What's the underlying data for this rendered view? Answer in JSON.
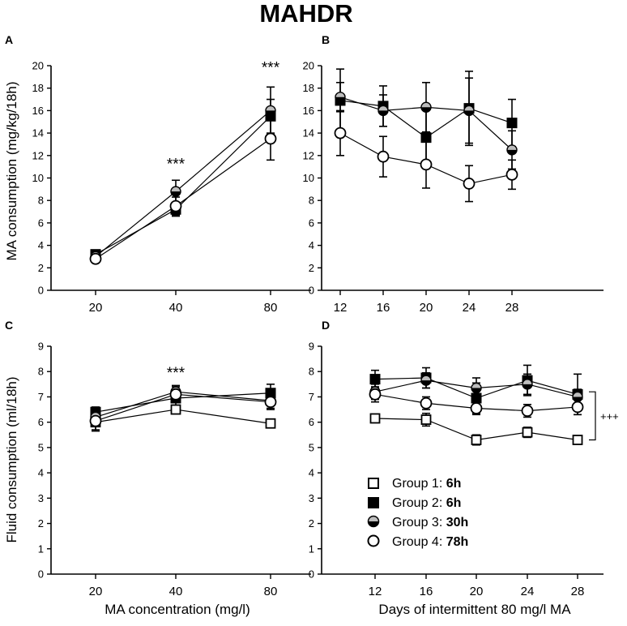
{
  "figure": {
    "title": "MAHDR",
    "xlabel_left": "MA concentration (mg/l)",
    "xlabel_right": "Days of intermittent 80 mg/l MA"
  },
  "legend": [
    {
      "group": "Group 1:",
      "time": "6h",
      "marker": "open-square"
    },
    {
      "group": "Group 2:",
      "time": "6h",
      "marker": "filled-square"
    },
    {
      "group": "Group 3:",
      "time": "30h",
      "marker": "half-filled-circle"
    },
    {
      "group": "Group 4:",
      "time": "78h",
      "marker": "open-circle"
    }
  ],
  "colors": {
    "ink": "#000000",
    "grey_fill": "#bdbdbd",
    "white": "#ffffff"
  },
  "chart_data": [
    {
      "panel": "A",
      "type": "line",
      "ylabel": "MA consumption (mg/kg/18h)",
      "x": [
        20,
        40,
        80
      ],
      "ylim": [
        0,
        20
      ],
      "yticks": [
        0,
        2,
        4,
        6,
        8,
        10,
        12,
        14,
        16,
        18,
        20
      ],
      "series": [
        {
          "name": "Group 2",
          "marker": "filled-square",
          "values": [
            3.2,
            7.2,
            15.5
          ],
          "err": [
            0.2,
            0.6,
            1.5
          ]
        },
        {
          "name": "Group 3",
          "marker": "half-filled-circle",
          "values": [
            3.0,
            8.8,
            16.0
          ],
          "err": [
            0.2,
            1.0,
            2.1
          ]
        },
        {
          "name": "Group 4",
          "marker": "open-circle",
          "values": [
            2.8,
            7.5,
            13.5
          ],
          "err": [
            0.2,
            0.8,
            1.9
          ]
        }
      ],
      "annotations": [
        {
          "x": 40,
          "y": 10.8,
          "text": "***"
        },
        {
          "x": 80,
          "y": 19.4,
          "text": "***"
        }
      ]
    },
    {
      "panel": "B",
      "type": "line",
      "ylabel": "",
      "x": [
        12,
        16,
        20,
        24,
        28
      ],
      "ylim": [
        0,
        20
      ],
      "yticks": [
        0,
        2,
        4,
        6,
        8,
        10,
        12,
        14,
        16,
        18,
        20
      ],
      "series": [
        {
          "name": "Group 2",
          "marker": "filled-square",
          "values": [
            16.9,
            16.4,
            13.6,
            16.2,
            14.9
          ],
          "err": [
            2.8,
            1.8,
            2.6,
            3.3,
            2.1
          ]
        },
        {
          "name": "Group 3",
          "marker": "half-filled-circle",
          "values": [
            17.2,
            16.0,
            16.3,
            16.0,
            12.5
          ],
          "err": [
            1.3,
            1.4,
            2.2,
            2.9,
            1.7
          ]
        },
        {
          "name": "Group 4",
          "marker": "open-circle",
          "values": [
            14.0,
            11.9,
            11.2,
            9.5,
            10.3
          ],
          "err": [
            2.0,
            1.8,
            2.1,
            1.6,
            1.3
          ]
        }
      ]
    },
    {
      "panel": "C",
      "type": "line",
      "ylabel": "Fluid consumption (ml/18h)",
      "x": [
        20,
        40,
        80
      ],
      "ylim": [
        0,
        9
      ],
      "yticks": [
        0,
        1,
        2,
        3,
        4,
        5,
        6,
        7,
        8,
        9
      ],
      "series": [
        {
          "name": "Group 1",
          "marker": "open-square",
          "values": [
            6.0,
            6.5,
            5.95
          ],
          "err": [
            0.35,
            0.15,
            0.1
          ]
        },
        {
          "name": "Group 2",
          "marker": "filled-square",
          "values": [
            6.4,
            6.95,
            7.15
          ],
          "err": [
            0.2,
            0.35,
            0.35
          ]
        },
        {
          "name": "Group 3",
          "marker": "half-filled-circle",
          "values": [
            6.2,
            7.2,
            6.85
          ],
          "err": [
            0.2,
            0.25,
            0.3
          ]
        },
        {
          "name": "Group 4",
          "marker": "open-circle",
          "values": [
            6.05,
            7.1,
            6.8
          ],
          "err": [
            0.35,
            0.3,
            0.3
          ]
        }
      ],
      "annotations": [
        {
          "x": 40,
          "y": 7.75,
          "text": "***"
        }
      ]
    },
    {
      "panel": "D",
      "type": "line",
      "ylabel": "",
      "x": [
        12,
        16,
        20,
        24,
        28
      ],
      "ylim": [
        0,
        9
      ],
      "yticks": [
        0,
        1,
        2,
        3,
        4,
        5,
        6,
        7,
        8,
        9
      ],
      "series": [
        {
          "name": "Group 1",
          "marker": "open-square",
          "values": [
            6.15,
            6.1,
            5.3,
            5.6,
            5.3
          ],
          "err": [
            0.15,
            0.25,
            0.2,
            0.2,
            0.15
          ]
        },
        {
          "name": "Group 2",
          "marker": "filled-square",
          "values": [
            7.7,
            7.75,
            6.95,
            7.65,
            7.1
          ],
          "err": [
            0.35,
            0.4,
            0.6,
            0.6,
            0.8
          ]
        },
        {
          "name": "Group 3",
          "marker": "half-filled-circle",
          "values": [
            7.2,
            7.65,
            7.35,
            7.5,
            7.0
          ],
          "err": [
            0.3,
            0.3,
            0.4,
            0.4,
            0.3
          ]
        },
        {
          "name": "Group 4",
          "marker": "open-circle",
          "values": [
            7.1,
            6.75,
            6.55,
            6.45,
            6.6
          ],
          "err": [
            0.3,
            0.25,
            0.25,
            0.25,
            0.3
          ]
        }
      ],
      "bracket": {
        "y_from": 7.2,
        "y_to": 5.3,
        "text": "+++"
      }
    }
  ]
}
